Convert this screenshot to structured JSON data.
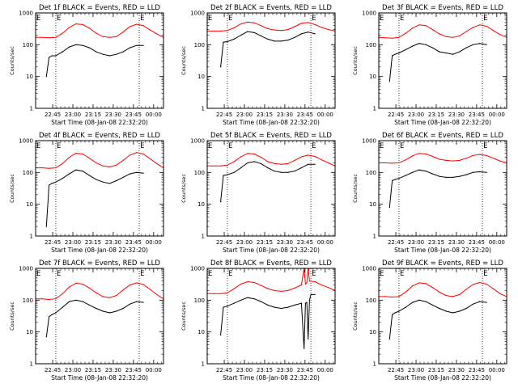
{
  "colors": {
    "events": "#000000",
    "lld": "#ff0000",
    "axes": "#000000",
    "background": "#ffffff"
  },
  "chart_data": [
    {
      "type": "line",
      "title": "Det 1f BLACK = Events, RED = LLD",
      "xlabel": "Start Time (08-Jan-08 22:32:20)",
      "ylabel": "Counts/sec",
      "yscale": "log",
      "ylim": [
        1,
        1000
      ],
      "yticks": [
        "1",
        "10",
        "100",
        "1000"
      ],
      "xticks": [
        "22:45",
        "23:00",
        "23:15",
        "23:30",
        "23:45",
        "00:00"
      ],
      "x_range_minutes_from_start": [
        0,
        95
      ],
      "vlines_minutes_from_start": [
        15,
        77
      ],
      "markers": [
        "E",
        "E"
      ],
      "series": [
        {
          "name": "Events",
          "color": "#000000",
          "x": [
            8,
            10,
            12,
            15,
            20,
            25,
            30,
            35,
            40,
            45,
            50,
            55,
            60,
            65,
            70,
            75,
            80
          ],
          "y": [
            10,
            40,
            45,
            45,
            60,
            85,
            100,
            95,
            80,
            60,
            50,
            45,
            50,
            60,
            80,
            95,
            95
          ]
        },
        {
          "name": "LLD",
          "color": "#ff0000",
          "x": [
            0,
            5,
            10,
            15,
            20,
            25,
            30,
            35,
            40,
            45,
            50,
            55,
            60,
            65,
            70,
            75,
            80,
            85,
            90,
            95
          ],
          "y": [
            170,
            170,
            165,
            170,
            230,
            350,
            450,
            430,
            330,
            230,
            180,
            170,
            180,
            250,
            370,
            440,
            400,
            290,
            220,
            170
          ]
        }
      ]
    },
    {
      "type": "line",
      "title": "Det 2f BLACK = Events, RED = LLD",
      "xlabel": "Start Time (08-Jan-08 22:32:20)",
      "ylabel": "Counts/sec",
      "yscale": "log",
      "ylim": [
        1,
        1000
      ],
      "yticks": [
        "1",
        "10",
        "100",
        "1000"
      ],
      "xticks": [
        "22:45",
        "23:00",
        "23:15",
        "23:30",
        "23:45",
        "00:00"
      ],
      "x_range_minutes_from_start": [
        0,
        95
      ],
      "vlines_minutes_from_start": [
        15,
        77
      ],
      "markers": [
        "E",
        "E"
      ],
      "series": [
        {
          "name": "Events",
          "color": "#000000",
          "x": [
            10,
            12,
            15,
            20,
            25,
            30,
            35,
            40,
            45,
            50,
            55,
            60,
            65,
            70,
            75,
            80
          ],
          "y": [
            20,
            120,
            125,
            150,
            200,
            260,
            240,
            190,
            150,
            130,
            130,
            140,
            170,
            220,
            250,
            220
          ]
        },
        {
          "name": "LLD",
          "color": "#ff0000",
          "x": [
            0,
            5,
            10,
            15,
            20,
            25,
            30,
            35,
            40,
            45,
            50,
            55,
            60,
            65,
            70,
            75,
            80,
            85,
            90,
            95
          ],
          "y": [
            270,
            270,
            270,
            280,
            340,
            450,
            520,
            490,
            400,
            320,
            290,
            280,
            300,
            370,
            470,
            500,
            430,
            350,
            300,
            270
          ]
        }
      ]
    },
    {
      "type": "line",
      "title": "Det 3f BLACK = Events, RED = LLD",
      "xlabel": "Start Time (08-Jan-08 22:32:20)",
      "ylabel": "Counts/sec",
      "yscale": "log",
      "ylim": [
        1,
        1000
      ],
      "yticks": [
        "1",
        "10",
        "100",
        "1000"
      ],
      "xticks": [
        "22:45",
        "23:00",
        "23:15",
        "23:30",
        "23:45",
        "00:00"
      ],
      "x_range_minutes_from_start": [
        0,
        95
      ],
      "vlines_minutes_from_start": [
        15,
        77
      ],
      "markers": [
        "E",
        "E"
      ],
      "series": [
        {
          "name": "Events",
          "color": "#000000",
          "x": [
            8,
            10,
            12,
            15,
            20,
            25,
            30,
            35,
            40,
            45,
            50,
            55,
            60,
            65,
            70,
            75,
            80
          ],
          "y": [
            7,
            45,
            50,
            55,
            70,
            90,
            110,
            100,
            80,
            60,
            55,
            50,
            60,
            80,
            100,
            110,
            100
          ]
        },
        {
          "name": "LLD",
          "color": "#ff0000",
          "x": [
            0,
            5,
            10,
            15,
            20,
            25,
            30,
            35,
            40,
            45,
            50,
            55,
            60,
            65,
            70,
            75,
            80,
            85,
            90,
            95
          ],
          "y": [
            170,
            165,
            160,
            170,
            230,
            330,
            420,
            400,
            300,
            220,
            180,
            170,
            190,
            260,
            350,
            420,
            380,
            280,
            210,
            170
          ]
        }
      ]
    },
    {
      "type": "line",
      "title": "Det 4f BLACK = Events, RED = LLD",
      "xlabel": "Start Time (08-Jan-08 22:32:20)",
      "ylabel": "Counts/sec",
      "yscale": "log",
      "ylim": [
        1,
        1000
      ],
      "yticks": [
        "1",
        "10",
        "100",
        "1000"
      ],
      "xticks": [
        "22:45",
        "23:00",
        "23:15",
        "23:30",
        "23:45",
        "00:00"
      ],
      "x_range_minutes_from_start": [
        0,
        95
      ],
      "vlines_minutes_from_start": [
        15,
        77
      ],
      "markers": [
        "E",
        "E"
      ],
      "series": [
        {
          "name": "Events",
          "color": "#000000",
          "x": [
            8,
            10,
            12,
            15,
            20,
            25,
            30,
            35,
            40,
            45,
            50,
            55,
            60,
            65,
            70,
            75,
            80
          ],
          "y": [
            2,
            40,
            45,
            50,
            65,
            90,
            120,
            110,
            80,
            60,
            50,
            45,
            55,
            70,
            90,
            100,
            95
          ]
        },
        {
          "name": "LLD",
          "color": "#ff0000",
          "x": [
            0,
            5,
            10,
            15,
            20,
            25,
            30,
            35,
            40,
            45,
            50,
            55,
            60,
            65,
            70,
            75,
            80,
            85,
            90,
            95
          ],
          "y": [
            140,
            140,
            135,
            140,
            190,
            300,
            400,
            380,
            280,
            200,
            160,
            150,
            170,
            240,
            350,
            420,
            380,
            270,
            190,
            140
          ]
        }
      ]
    },
    {
      "type": "line",
      "title": "Det 5f BLACK = Events, RED = LLD",
      "xlabel": "Start Time (08-Jan-08 22:32:20)",
      "ylabel": "Counts/sec",
      "yscale": "log",
      "ylim": [
        1,
        1000
      ],
      "yticks": [
        "1",
        "10",
        "100",
        "1000"
      ],
      "xticks": [
        "22:45",
        "23:00",
        "23:15",
        "23:30",
        "23:45",
        "00:00"
      ],
      "x_range_minutes_from_start": [
        0,
        95
      ],
      "vlines_minutes_from_start": [
        15,
        77
      ],
      "markers": [
        "E",
        "E"
      ],
      "series": [
        {
          "name": "Events",
          "color": "#000000",
          "x": [
            10,
            12,
            15,
            20,
            25,
            30,
            35,
            40,
            45,
            50,
            55,
            60,
            65,
            70,
            75,
            80
          ],
          "y": [
            12,
            80,
            85,
            100,
            140,
            200,
            220,
            190,
            140,
            110,
            100,
            100,
            110,
            140,
            180,
            180
          ]
        },
        {
          "name": "LLD",
          "color": "#ff0000",
          "x": [
            0,
            5,
            10,
            15,
            20,
            25,
            30,
            35,
            40,
            45,
            50,
            55,
            60,
            65,
            70,
            75,
            80,
            85,
            90,
            95
          ],
          "y": [
            160,
            160,
            160,
            170,
            220,
            310,
            400,
            380,
            300,
            220,
            190,
            180,
            190,
            240,
            310,
            350,
            320,
            250,
            200,
            160
          ]
        }
      ]
    },
    {
      "type": "line",
      "title": "Det 6f BLACK = Events, RED = LLD",
      "xlabel": "Start Time (08-Jan-08 22:32:20)",
      "ylabel": "Counts/sec",
      "yscale": "log",
      "ylim": [
        1,
        1000
      ],
      "yticks": [
        "1",
        "10",
        "100",
        "1000"
      ],
      "xticks": [
        "22:45",
        "23:00",
        "23:15",
        "23:30",
        "23:45",
        "00:00"
      ],
      "x_range_minutes_from_start": [
        0,
        95
      ],
      "vlines_minutes_from_start": [
        15,
        77
      ],
      "markers": [
        "E",
        "E"
      ],
      "series": [
        {
          "name": "Events",
          "color": "#000000",
          "x": [
            8,
            10,
            12,
            15,
            20,
            25,
            30,
            35,
            40,
            45,
            50,
            55,
            60,
            65,
            70,
            75,
            80
          ],
          "y": [
            8,
            55,
            60,
            65,
            80,
            100,
            120,
            110,
            90,
            75,
            70,
            70,
            75,
            85,
            100,
            105,
            100
          ]
        },
        {
          "name": "LLD",
          "color": "#ff0000",
          "x": [
            0,
            5,
            10,
            15,
            20,
            25,
            30,
            35,
            40,
            45,
            50,
            55,
            60,
            65,
            70,
            75,
            80,
            85,
            90,
            95
          ],
          "y": [
            200,
            200,
            195,
            200,
            250,
            330,
            400,
            380,
            320,
            260,
            240,
            230,
            240,
            280,
            340,
            370,
            340,
            280,
            230,
            200
          ]
        }
      ]
    },
    {
      "type": "line",
      "title": "Det 7f BLACK = Events, RED = LLD",
      "xlabel": "Start Time (08-Jan-08 22:32:20)",
      "ylabel": "Counts/sec",
      "yscale": "log",
      "ylim": [
        1,
        1000
      ],
      "yticks": [
        "1",
        "10",
        "100",
        "1000"
      ],
      "xticks": [
        "22:45",
        "23:00",
        "23:15",
        "23:30",
        "23:45",
        "00:00"
      ],
      "x_range_minutes_from_start": [
        0,
        95
      ],
      "vlines_minutes_from_start": [
        15,
        77
      ],
      "markers": [
        "E",
        "E"
      ],
      "series": [
        {
          "name": "Events",
          "color": "#000000",
          "x": [
            8,
            10,
            12,
            15,
            20,
            25,
            30,
            35,
            40,
            45,
            50,
            55,
            60,
            65,
            70,
            75,
            80
          ],
          "y": [
            7,
            30,
            35,
            40,
            60,
            90,
            100,
            90,
            70,
            55,
            45,
            40,
            45,
            55,
            75,
            90,
            85
          ]
        },
        {
          "name": "LLD",
          "color": "#ff0000",
          "x": [
            0,
            5,
            10,
            15,
            20,
            25,
            30,
            35,
            40,
            45,
            50,
            55,
            60,
            65,
            70,
            75,
            80,
            85,
            90,
            95
          ],
          "y": [
            110,
            110,
            105,
            110,
            160,
            260,
            340,
            320,
            240,
            170,
            130,
            120,
            140,
            210,
            300,
            350,
            310,
            220,
            150,
            110
          ]
        }
      ]
    },
    {
      "type": "line",
      "title": "Det 8f BLACK = Events, RED = LLD",
      "xlabel": "Start Time (08-Jan-08 22:32:20)",
      "ylabel": "Counts/sec",
      "yscale": "log",
      "ylim": [
        1,
        1000
      ],
      "yticks": [
        "1",
        "10",
        "100",
        "1000"
      ],
      "xticks": [
        "22:45",
        "23:00",
        "23:15",
        "23:30",
        "23:45",
        "00:00"
      ],
      "x_range_minutes_from_start": [
        0,
        95
      ],
      "vlines_minutes_from_start": [
        15,
        77
      ],
      "markers": [
        "E",
        "E"
      ],
      "series": [
        {
          "name": "Events",
          "color": "#000000",
          "x": [
            10,
            12,
            15,
            20,
            25,
            30,
            35,
            40,
            45,
            50,
            55,
            60,
            65,
            70,
            72,
            73,
            74,
            75,
            76,
            77,
            80
          ],
          "y": [
            8,
            60,
            65,
            80,
            100,
            120,
            110,
            90,
            70,
            60,
            55,
            60,
            70,
            80,
            3,
            80,
            85,
            6,
            100,
            150,
            150
          ]
        },
        {
          "name": "LLD",
          "color": "#ff0000",
          "x": [
            0,
            5,
            10,
            15,
            20,
            25,
            30,
            35,
            40,
            45,
            50,
            55,
            60,
            65,
            70,
            72,
            73,
            74,
            75,
            76,
            80,
            85,
            90,
            95
          ],
          "y": [
            160,
            160,
            160,
            170,
            230,
            320,
            380,
            360,
            290,
            230,
            200,
            190,
            200,
            240,
            300,
            1000,
            320,
            350,
            1000,
            400,
            380,
            300,
            250,
            200
          ]
        }
      ]
    },
    {
      "type": "line",
      "title": "Det 9f BLACK = Events, RED = LLD",
      "xlabel": "Start Time (08-Jan-08 22:32:20)",
      "ylabel": "Counts/sec",
      "yscale": "log",
      "ylim": [
        1,
        1000
      ],
      "yticks": [
        "1",
        "10",
        "100",
        "1000"
      ],
      "xticks": [
        "22:45",
        "23:00",
        "23:15",
        "23:30",
        "23:45",
        "00:00"
      ],
      "x_range_minutes_from_start": [
        0,
        95
      ],
      "vlines_minutes_from_start": [
        15,
        77
      ],
      "markers": [
        "E",
        "E"
      ],
      "series": [
        {
          "name": "Events",
          "color": "#000000",
          "x": [
            8,
            10,
            12,
            15,
            20,
            25,
            30,
            35,
            40,
            45,
            50,
            55,
            60,
            65,
            70,
            75,
            80
          ],
          "y": [
            6,
            35,
            40,
            45,
            60,
            85,
            100,
            90,
            70,
            55,
            45,
            40,
            45,
            55,
            75,
            90,
            85
          ]
        },
        {
          "name": "LLD",
          "color": "#ff0000",
          "x": [
            0,
            5,
            10,
            15,
            20,
            25,
            30,
            35,
            40,
            45,
            50,
            55,
            60,
            65,
            70,
            75,
            80,
            85,
            90,
            95
          ],
          "y": [
            130,
            130,
            125,
            130,
            180,
            280,
            350,
            330,
            250,
            180,
            140,
            130,
            150,
            220,
            310,
            360,
            320,
            230,
            160,
            130
          ]
        }
      ]
    }
  ]
}
